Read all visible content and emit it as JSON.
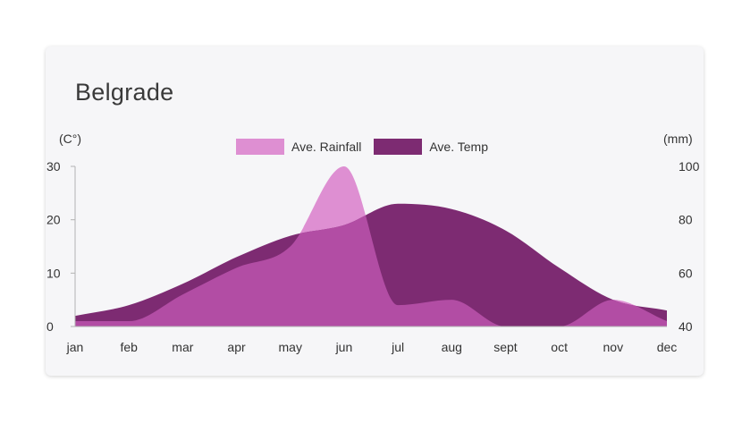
{
  "title": "Belgrade",
  "colors": {
    "rainfall": "#de8fd2",
    "temp": "#7d2b72",
    "overlap": "#b24da4",
    "axis": "#b3b3b3"
  },
  "chart_data": {
    "type": "area",
    "title": "Belgrade",
    "categories": [
      "jan",
      "feb",
      "mar",
      "apr",
      "may",
      "jun",
      "jul",
      "aug",
      "sept",
      "oct",
      "nov",
      "dec"
    ],
    "y_left_label": "(C°)",
    "y_right_label": "(mm)",
    "y_left_range": [
      0,
      30
    ],
    "y_left_ticks": [
      "0",
      "10",
      "20",
      "30"
    ],
    "y_right_range": [
      40,
      100
    ],
    "y_right_ticks": [
      "40",
      "60",
      "80",
      "100"
    ],
    "legend_position": "top-center",
    "series": [
      {
        "name": "Ave. Rainfall",
        "axis": "left",
        "values": [
          1,
          1,
          6,
          11,
          15,
          30,
          4,
          5,
          0,
          0,
          5,
          1
        ]
      },
      {
        "name": "Ave. Temp",
        "axis": "left",
        "values": [
          2,
          4,
          8,
          13,
          17,
          19,
          23,
          22,
          18,
          11,
          5,
          3
        ]
      }
    ]
  }
}
